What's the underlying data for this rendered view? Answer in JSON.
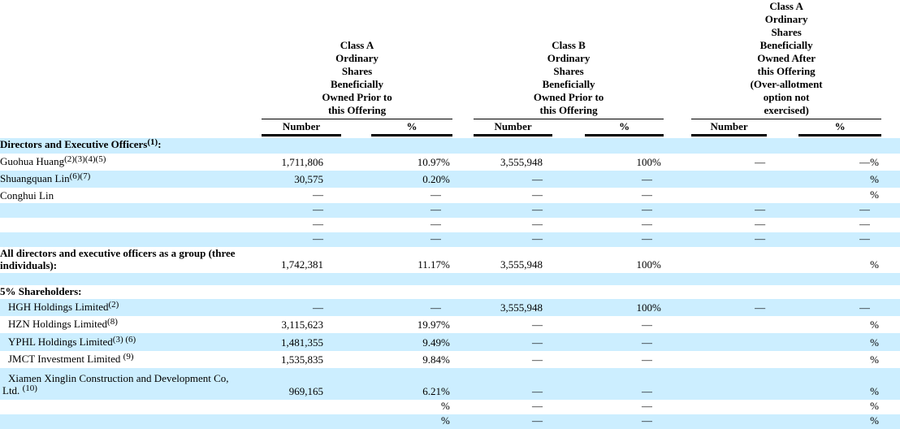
{
  "page": {
    "stripe_color": "#cceeff",
    "text_color": "#000000",
    "background_color": "#ffffff"
  },
  "table": {
    "groups": [
      {
        "title": "Class A\nOrdinary\nShares\nBeneficially\nOwned Prior to\nthis Offering",
        "number_label": "Number",
        "percent_label": "%"
      },
      {
        "title": "Class B\nOrdinary\nShares\nBeneficially\nOwned Prior to\nthis Offering",
        "number_label": "Number",
        "percent_label": "%"
      },
      {
        "title": "Class A\nOrdinary\nShares\nBeneficially\nOwned After\nthis Offering\n(Over-allotment\noption not\nexercised)",
        "number_label": "Number",
        "percent_label": "%"
      }
    ],
    "rows": [
      {
        "label": "Directors and Executive Officers",
        "sup": "(1)",
        "suffix": ":",
        "bold": true,
        "cells": [
          "",
          "",
          "",
          "",
          "",
          "",
          "",
          "",
          ""
        ]
      },
      {
        "label": "Guohua Huang",
        "sup": "(2)(3)(4)(5)",
        "cells": [
          "1,711,806",
          "10.97",
          "%",
          "3,555,948",
          "100",
          "%",
          "—",
          "—",
          "%"
        ]
      },
      {
        "label": "Shuangquan Lin",
        "sup": "(6)(7)",
        "cells": [
          "30,575",
          "0.20",
          "%",
          "—",
          "—",
          "",
          "",
          "",
          "%"
        ]
      },
      {
        "label": "Conghui Lin",
        "cells": [
          "—",
          "—",
          "",
          "—",
          "—",
          "",
          "",
          "",
          "%"
        ]
      },
      {
        "cells": [
          "—",
          "—",
          "",
          "—",
          "—",
          "",
          "—",
          "—",
          ""
        ]
      },
      {
        "cells": [
          "—",
          "—",
          "",
          "—",
          "—",
          "",
          "—",
          "—",
          ""
        ]
      },
      {
        "cells": [
          "—",
          "—",
          "",
          "—",
          "—",
          "",
          "—",
          "—",
          ""
        ]
      },
      {
        "label": "All directors and executive officers as a group (three\nindividuals):",
        "bold": true,
        "cells": [
          "1,742,381",
          "11.17",
          "%",
          "3,555,948",
          "100",
          "%",
          "",
          "",
          "%"
        ]
      },
      {
        "cells": [
          "",
          "",
          "",
          "",
          "",
          "",
          "",
          "",
          ""
        ]
      },
      {
        "label": "5% Shareholders:",
        "bold": true,
        "cells": [
          "",
          "",
          "",
          "",
          "",
          "",
          "",
          "",
          ""
        ]
      },
      {
        "label": "HGH Holdings Limited",
        "sup": "(2)",
        "indent": 1,
        "cells": [
          "—",
          "—",
          "",
          "3,555,948",
          "100",
          "%",
          "—",
          "—",
          ""
        ]
      },
      {
        "label": "HZN Holdings Limited",
        "sup": "(8)",
        "indent": 1,
        "cells": [
          "3,115,623",
          "19.97",
          "%",
          "—",
          "—",
          "",
          "",
          "",
          "%"
        ]
      },
      {
        "label": "YPHL Holdings Limited",
        "sup": "(3) (6)",
        "indent": 1,
        "cells": [
          "1,481,355",
          "9.49",
          "%",
          "—",
          "—",
          "",
          "",
          "",
          "%"
        ]
      },
      {
        "label": "JMCT Investment Limited ",
        "sup": "(9)",
        "indent": 1,
        "cells": [
          "1,535,835",
          "9.84",
          "%",
          "—",
          "—",
          "",
          "",
          "",
          "%"
        ]
      },
      {
        "label": "Xiamen Xinglin Construction and Development Co,\nLtd. ",
        "sup": "(10)",
        "indent": 1,
        "cells": [
          "969,165",
          "6.21",
          "%",
          "—",
          "—",
          "",
          "",
          "",
          "%"
        ]
      },
      {
        "cells": [
          "",
          "",
          "%",
          "—",
          "—",
          "",
          "",
          "",
          "%"
        ]
      },
      {
        "cells": [
          "",
          "",
          "%",
          "—",
          "—",
          "",
          "",
          "",
          "%"
        ]
      }
    ]
  }
}
